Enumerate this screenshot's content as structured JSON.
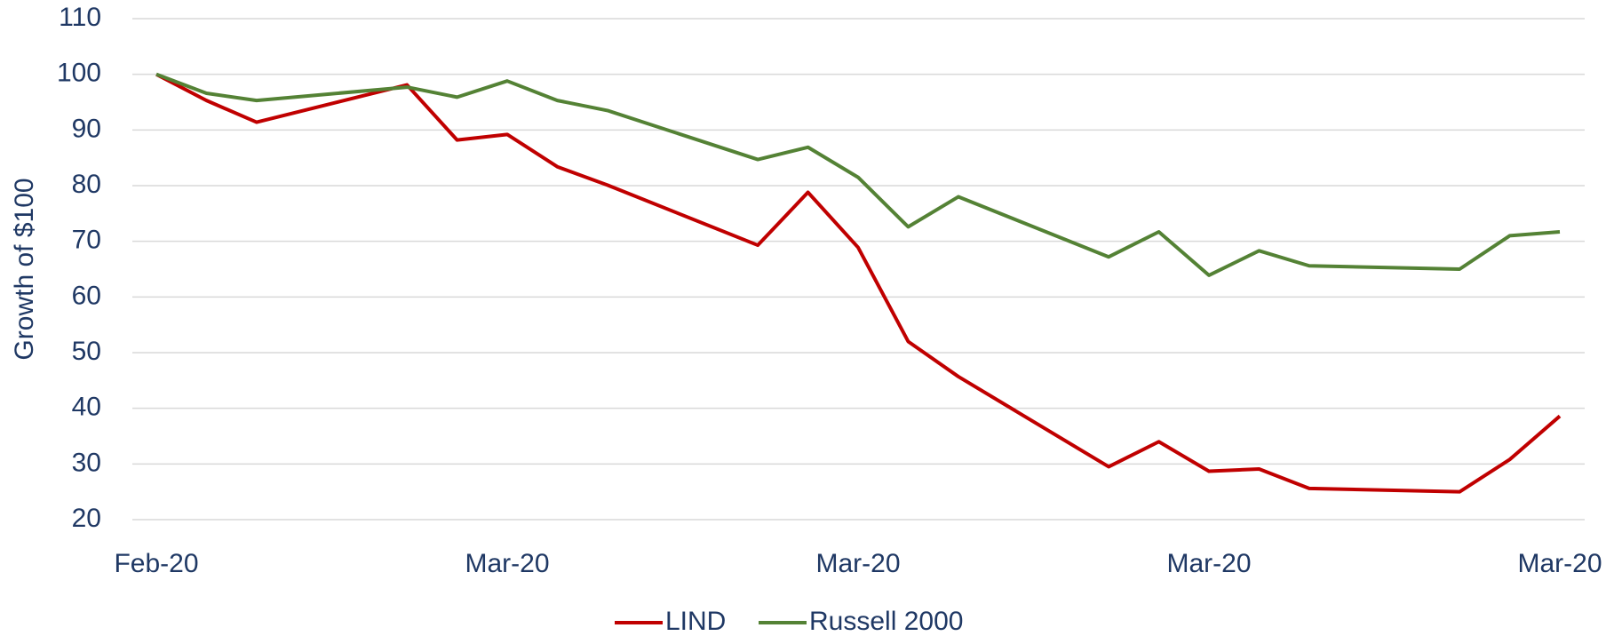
{
  "chart_data": {
    "type": "line",
    "y_label": "Growth of $100",
    "x": [
      0,
      1,
      2,
      5,
      6,
      7,
      8,
      9,
      12,
      13,
      14,
      15,
      16,
      19,
      20,
      21,
      22,
      23,
      26,
      27,
      28
    ],
    "series": [
      {
        "name": "LIND",
        "color": "#c00000",
        "values": [
          100,
          95.3,
          91.4,
          98.1,
          88.2,
          89.2,
          83.4,
          80.1,
          69.3,
          78.8,
          68.9,
          52.0,
          45.7,
          29.5,
          34.0,
          28.7,
          29.1,
          25.6,
          25.0,
          30.8,
          38.6
        ]
      },
      {
        "name": "Russell 2000",
        "color": "#548235",
        "values": [
          100,
          96.6,
          95.3,
          97.7,
          95.9,
          98.8,
          95.3,
          93.5,
          84.7,
          86.9,
          81.5,
          72.6,
          78.0,
          67.2,
          71.7,
          63.9,
          68.3,
          65.6,
          65.0,
          71.0,
          71.7
        ]
      }
    ],
    "xlim": [
      0,
      28
    ],
    "xticks": [
      {
        "value": 0,
        "label": "Feb-20"
      },
      {
        "value": 7,
        "label": "Mar-20"
      },
      {
        "value": 14,
        "label": "Mar-20"
      },
      {
        "value": 21,
        "label": "Mar-20"
      },
      {
        "value": 28,
        "label": "Mar-20"
      }
    ],
    "ylim": [
      20,
      110
    ],
    "yticks": [
      20,
      30,
      40,
      50,
      60,
      70,
      80,
      90,
      100,
      110
    ],
    "grid": true,
    "legend": "bottom"
  }
}
